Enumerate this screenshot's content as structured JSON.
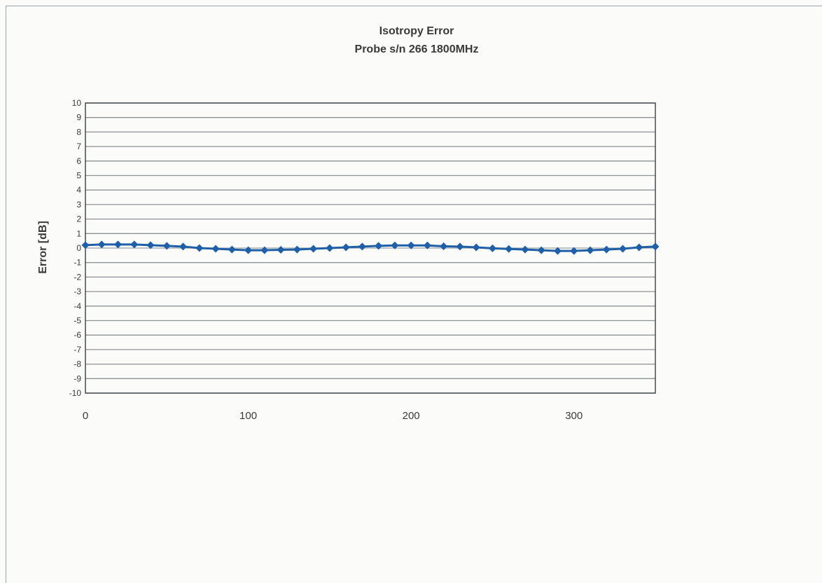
{
  "chart_data": {
    "type": "line",
    "title": "Isotropy Error",
    "subtitle": "Probe s/n 266 1800MHz",
    "xlabel": "",
    "ylabel": "Error [dB]",
    "xlim": [
      0,
      350
    ],
    "ylim": [
      -10,
      10
    ],
    "xticks": [
      0,
      100,
      200,
      300
    ],
    "yticks": [
      10,
      9,
      8,
      7,
      6,
      5,
      4,
      3,
      2,
      1,
      0,
      -1,
      -2,
      -3,
      -4,
      -5,
      -6,
      -7,
      -8,
      -9,
      -10
    ],
    "grid": true,
    "legend": "none",
    "series": [
      {
        "color": "#1f5fa8",
        "marker": "diamond",
        "x": [
          0,
          10,
          20,
          30,
          40,
          50,
          60,
          70,
          80,
          90,
          100,
          110,
          120,
          130,
          140,
          150,
          160,
          170,
          180,
          190,
          200,
          210,
          220,
          230,
          240,
          250,
          260,
          270,
          280,
          290,
          300,
          310,
          320,
          330,
          340,
          350
        ],
        "y": [
          0.2,
          0.25,
          0.25,
          0.25,
          0.2,
          0.15,
          0.1,
          0.0,
          -0.05,
          -0.1,
          -0.15,
          -0.15,
          -0.12,
          -0.1,
          -0.05,
          0.0,
          0.05,
          0.1,
          0.15,
          0.18,
          0.18,
          0.18,
          0.12,
          0.1,
          0.05,
          -0.02,
          -0.06,
          -0.1,
          -0.15,
          -0.2,
          -0.2,
          -0.15,
          -0.1,
          -0.05,
          0.05,
          0.1
        ]
      }
    ]
  }
}
